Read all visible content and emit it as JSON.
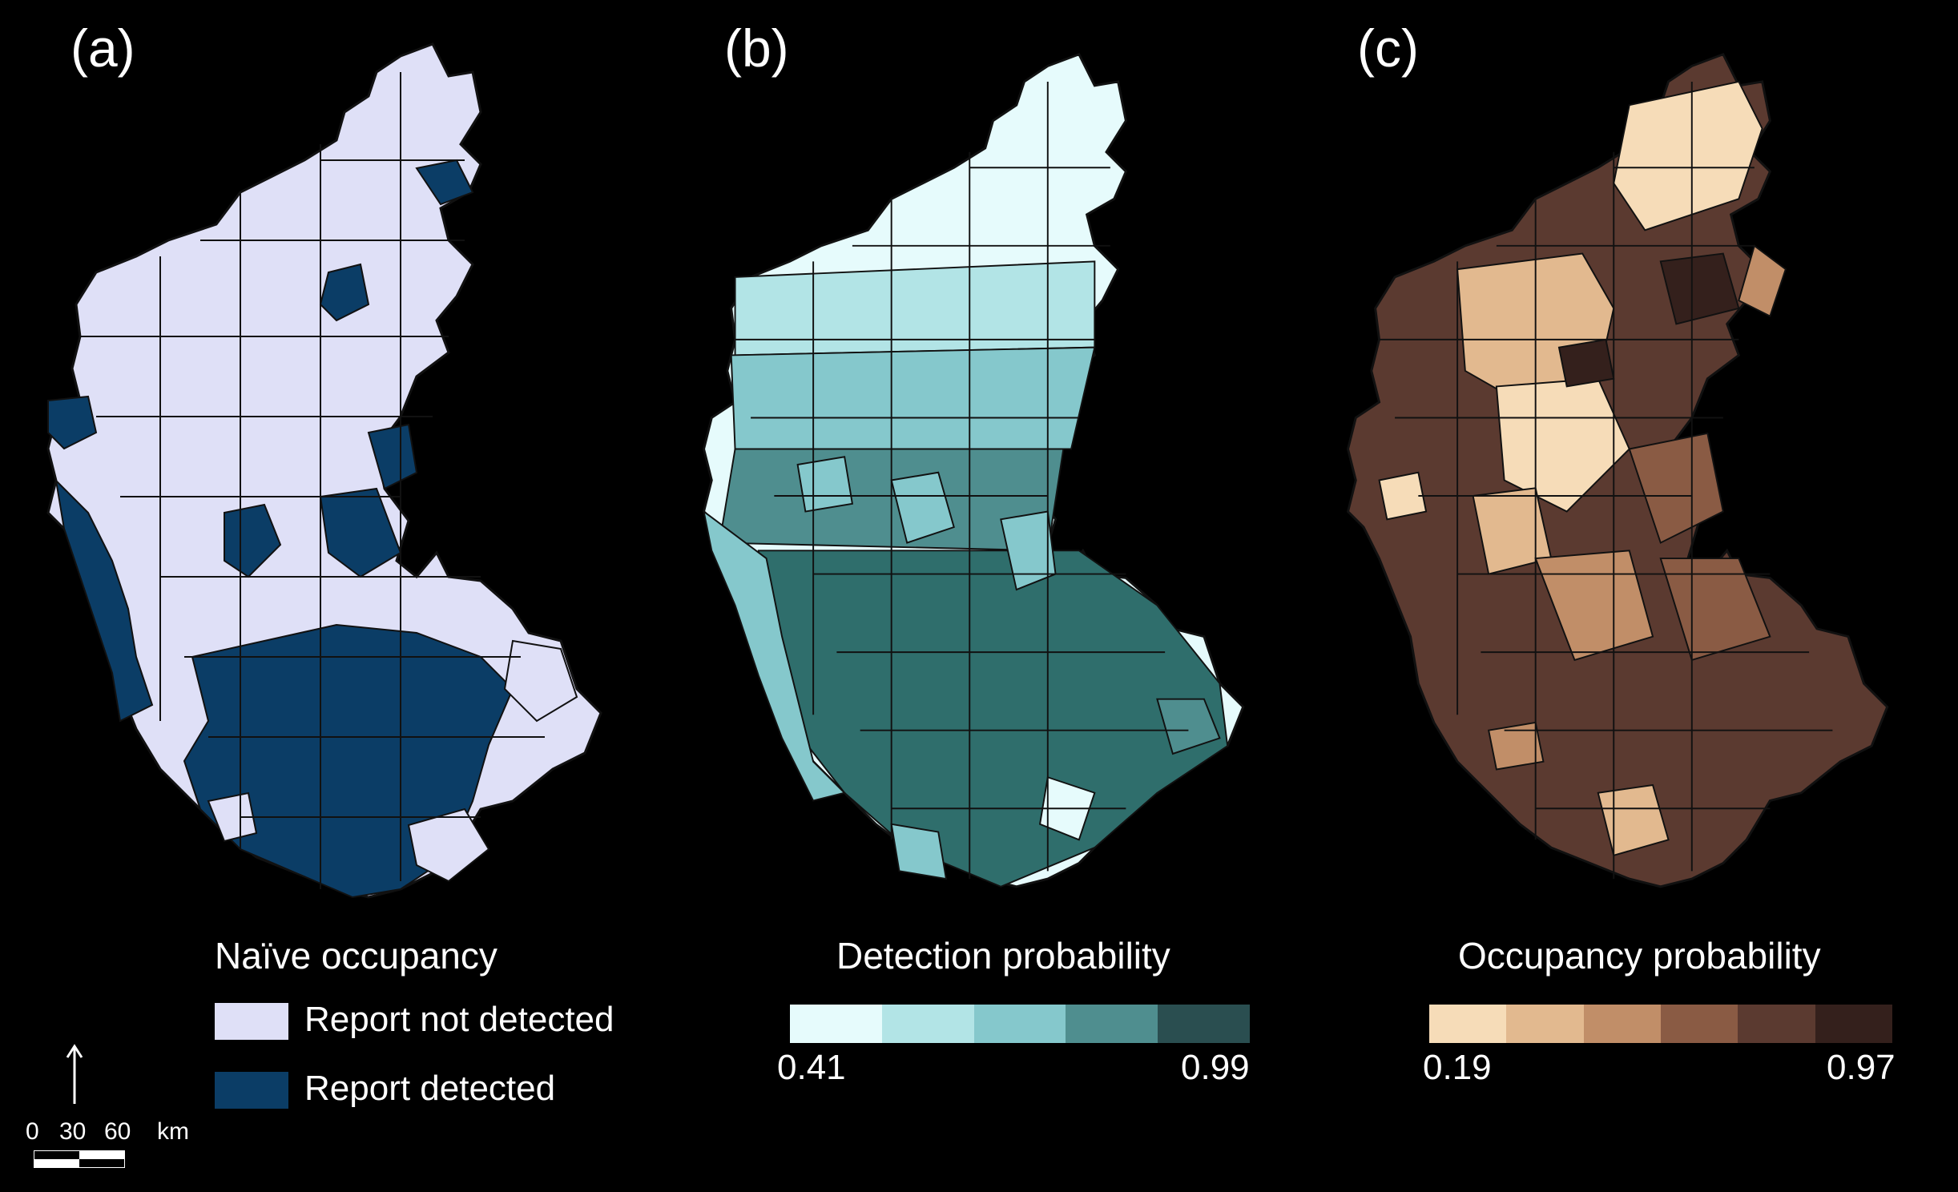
{
  "panels": [
    {
      "label": "(a)",
      "legend_title": "Naïve occupancy",
      "legend_items": [
        {
          "label": "Report not detected",
          "color": "#dfe0f7"
        },
        {
          "label": "Report detected",
          "color": "#0b3d66"
        }
      ]
    },
    {
      "label": "(b)",
      "legend_title": "Detection probability",
      "min_label": "0.41",
      "max_label": "0.99",
      "min": 0.41,
      "max": 0.99,
      "colors": [
        "#e6fbfc",
        "#b2e4e6",
        "#85c8cc",
        "#4f8e8f",
        "#2a4e50"
      ]
    },
    {
      "label": "(c)",
      "legend_title": "Occupancy probability",
      "min_label": "0.19",
      "max_label": "0.97",
      "min": 0.19,
      "max": 0.97,
      "colors": [
        "#f6dcb8",
        "#e2b98f",
        "#c18e68",
        "#8a5b44",
        "#5b3a30",
        "#34201c"
      ]
    }
  ],
  "scale_bar": {
    "north_arrow": "north-arrow-icon",
    "ticks": [
      "0",
      "30",
      "60"
    ],
    "unit": "km"
  }
}
